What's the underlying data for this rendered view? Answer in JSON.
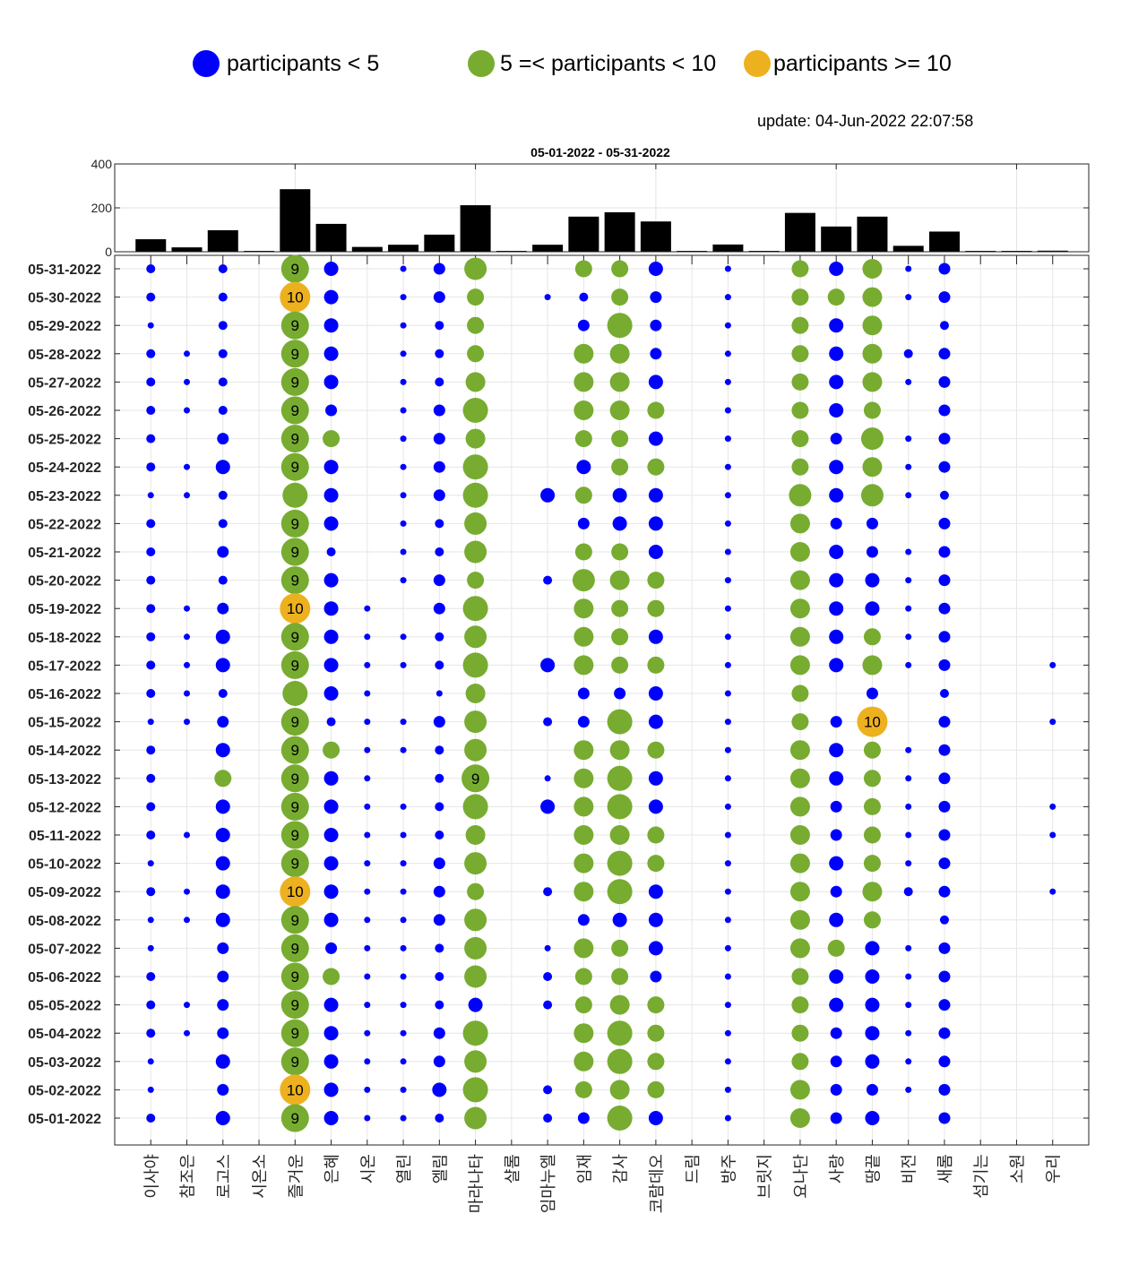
{
  "legend": {
    "items": [
      {
        "label": "participants < 5",
        "color": "#0000ff"
      },
      {
        "label": "5 =< participants < 10",
        "color": "#77ac30"
      },
      {
        "label": "participants >= 10",
        "color": "#edb120"
      }
    ]
  },
  "update_text": "update: 04-Jun-2022 22:07:58",
  "chart_data": {
    "type": "scatter",
    "title": "05-01-2022  - 05-31-2022",
    "bar_chart": {
      "type": "bar",
      "ylim": [
        0,
        400
      ],
      "yticks": [
        "0",
        "200",
        "400"
      ],
      "grid": true,
      "values": [
        57,
        20,
        98,
        0,
        285,
        127,
        22,
        32,
        78,
        212,
        0,
        32,
        160,
        180,
        138,
        0,
        33,
        0,
        177,
        115,
        160,
        27,
        92,
        0,
        0,
        5
      ]
    },
    "colors": {
      "low": "#0000ff",
      "mid": "#77ac30",
      "high": "#edb120"
    },
    "thresholds": {
      "mid": 5,
      "high": 10
    },
    "label_min": 9,
    "dates": [
      "05-31-2022",
      "05-30-2022",
      "05-29-2022",
      "05-28-2022",
      "05-27-2022",
      "05-26-2022",
      "05-25-2022",
      "05-24-2022",
      "05-23-2022",
      "05-22-2022",
      "05-21-2022",
      "05-20-2022",
      "05-19-2022",
      "05-18-2022",
      "05-17-2022",
      "05-16-2022",
      "05-15-2022",
      "05-14-2022",
      "05-13-2022",
      "05-12-2022",
      "05-11-2022",
      "05-10-2022",
      "05-09-2022",
      "05-08-2022",
      "05-07-2022",
      "05-06-2022",
      "05-05-2022",
      "05-04-2022",
      "05-03-2022",
      "05-02-2022",
      "05-01-2022"
    ],
    "groups": [
      {
        "name": "이사야",
        "values": [
          2,
          2,
          1,
          2,
          2,
          2,
          2,
          2,
          1,
          2,
          2,
          2,
          2,
          2,
          2,
          2,
          1,
          2,
          2,
          2,
          2,
          1,
          2,
          1,
          1,
          2,
          2,
          2,
          1,
          1,
          2
        ]
      },
      {
        "name": "참조은",
        "values": [
          0,
          0,
          0,
          1,
          1,
          1,
          0,
          1,
          1,
          0,
          0,
          0,
          1,
          1,
          1,
          1,
          1,
          0,
          0,
          0,
          1,
          0,
          1,
          1,
          0,
          0,
          1,
          1,
          0,
          0,
          0
        ]
      },
      {
        "name": "로고스",
        "values": [
          2,
          2,
          2,
          2,
          2,
          2,
          3,
          4,
          2,
          2,
          3,
          2,
          3,
          4,
          4,
          2,
          3,
          4,
          5,
          4,
          4,
          4,
          4,
          4,
          3,
          3,
          3,
          3,
          4,
          3,
          4
        ]
      },
      {
        "name": "시온소",
        "values": [
          0,
          0,
          0,
          0,
          0,
          0,
          0,
          0,
          0,
          0,
          0,
          0,
          0,
          0,
          0,
          0,
          0,
          0,
          0,
          0,
          0,
          0,
          0,
          0,
          0,
          0,
          0,
          0,
          0,
          0,
          0
        ]
      },
      {
        "name": "즐거운",
        "values": [
          9,
          10,
          9,
          9,
          9,
          9,
          9,
          9,
          8,
          9,
          9,
          9,
          10,
          9,
          9,
          8,
          9,
          9,
          9,
          9,
          9,
          9,
          10,
          9,
          9,
          9,
          9,
          9,
          9,
          10,
          9
        ]
      },
      {
        "name": "은혜",
        "values": [
          4,
          4,
          4,
          4,
          4,
          3,
          5,
          4,
          4,
          4,
          2,
          4,
          4,
          4,
          4,
          4,
          2,
          5,
          4,
          4,
          4,
          4,
          4,
          4,
          3,
          5,
          4,
          4,
          4,
          4,
          4
        ]
      },
      {
        "name": "시온",
        "values": [
          0,
          0,
          0,
          0,
          0,
          0,
          0,
          0,
          0,
          0,
          0,
          0,
          1,
          1,
          1,
          1,
          1,
          1,
          1,
          1,
          1,
          1,
          1,
          1,
          1,
          1,
          1,
          1,
          1,
          1,
          1
        ]
      },
      {
        "name": "열린",
        "values": [
          1,
          1,
          1,
          1,
          1,
          1,
          1,
          1,
          1,
          1,
          1,
          1,
          0,
          1,
          1,
          0,
          1,
          1,
          0,
          1,
          1,
          1,
          1,
          1,
          1,
          1,
          1,
          1,
          1,
          1,
          1
        ]
      },
      {
        "name": "엘림",
        "values": [
          3,
          3,
          2,
          2,
          2,
          3,
          3,
          3,
          3,
          2,
          2,
          3,
          3,
          2,
          2,
          1,
          3,
          2,
          2,
          2,
          2,
          3,
          3,
          3,
          2,
          2,
          2,
          3,
          3,
          4,
          2
        ]
      },
      {
        "name": "마라나타",
        "values": [
          7,
          5,
          5,
          5,
          6,
          8,
          6,
          8,
          8,
          7,
          7,
          5,
          8,
          7,
          8,
          6,
          7,
          7,
          9,
          8,
          6,
          7,
          5,
          7,
          7,
          7,
          4,
          8,
          7,
          8,
          7
        ]
      },
      {
        "name": "샬롬",
        "values": [
          0,
          0,
          0,
          0,
          0,
          0,
          0,
          0,
          0,
          0,
          0,
          0,
          0,
          0,
          0,
          0,
          0,
          0,
          0,
          0,
          0,
          0,
          0,
          0,
          0,
          0,
          0,
          0,
          0,
          0,
          0
        ]
      },
      {
        "name": "임마누엘",
        "values": [
          0,
          1,
          0,
          0,
          0,
          0,
          0,
          0,
          4,
          0,
          0,
          2,
          0,
          0,
          4,
          0,
          2,
          0,
          1,
          4,
          0,
          0,
          2,
          0,
          1,
          2,
          2,
          0,
          0,
          2,
          2
        ]
      },
      {
        "name": "임재",
        "values": [
          5,
          2,
          3,
          6,
          6,
          6,
          5,
          4,
          5,
          3,
          5,
          7,
          6,
          6,
          6,
          3,
          3,
          6,
          6,
          6,
          6,
          6,
          6,
          3,
          6,
          5,
          5,
          6,
          6,
          5,
          3
        ]
      },
      {
        "name": "감사",
        "values": [
          5,
          5,
          8,
          6,
          6,
          6,
          5,
          5,
          4,
          4,
          5,
          6,
          5,
          5,
          5,
          3,
          8,
          6,
          8,
          8,
          6,
          8,
          8,
          4,
          5,
          5,
          6,
          8,
          8,
          6,
          8
        ]
      },
      {
        "name": "코람데오",
        "values": [
          4,
          3,
          3,
          3,
          4,
          5,
          4,
          5,
          4,
          4,
          4,
          5,
          5,
          4,
          5,
          4,
          4,
          5,
          4,
          4,
          5,
          5,
          4,
          4,
          4,
          3,
          5,
          5,
          5,
          5,
          4
        ]
      },
      {
        "name": "드림",
        "values": [
          0,
          0,
          0,
          0,
          0,
          0,
          0,
          0,
          0,
          0,
          0,
          0,
          0,
          0,
          0,
          0,
          0,
          0,
          0,
          0,
          0,
          0,
          0,
          0,
          0,
          0,
          0,
          0,
          0,
          0,
          0
        ]
      },
      {
        "name": "방주",
        "values": [
          1,
          1,
          1,
          1,
          1,
          1,
          1,
          1,
          1,
          1,
          1,
          1,
          1,
          1,
          1,
          1,
          1,
          1,
          1,
          1,
          1,
          1,
          1,
          1,
          1,
          1,
          1,
          1,
          1,
          1,
          1
        ]
      },
      {
        "name": "브릿지",
        "values": [
          0,
          0,
          0,
          0,
          0,
          0,
          0,
          0,
          0,
          0,
          0,
          0,
          0,
          0,
          0,
          0,
          0,
          0,
          0,
          0,
          0,
          0,
          0,
          0,
          0,
          0,
          0,
          0,
          0,
          0,
          0
        ]
      },
      {
        "name": "요나단",
        "values": [
          5,
          5,
          5,
          5,
          5,
          5,
          5,
          5,
          7,
          6,
          6,
          6,
          6,
          6,
          6,
          5,
          5,
          6,
          6,
          6,
          6,
          6,
          6,
          6,
          6,
          5,
          5,
          5,
          5,
          6,
          6
        ]
      },
      {
        "name": "사랑",
        "values": [
          4,
          5,
          4,
          4,
          4,
          4,
          3,
          4,
          4,
          3,
          4,
          4,
          4,
          4,
          4,
          0,
          3,
          4,
          4,
          3,
          3,
          4,
          3,
          4,
          5,
          4,
          4,
          3,
          3,
          3,
          3
        ]
      },
      {
        "name": "땅끝",
        "values": [
          6,
          6,
          6,
          6,
          6,
          5,
          7,
          6,
          7,
          3,
          3,
          4,
          4,
          5,
          6,
          3,
          10,
          5,
          5,
          5,
          5,
          5,
          6,
          5,
          4,
          4,
          4,
          4,
          4,
          3,
          4
        ]
      },
      {
        "name": "비전",
        "values": [
          1,
          1,
          0,
          2,
          1,
          0,
          1,
          1,
          1,
          0,
          1,
          1,
          1,
          1,
          1,
          0,
          0,
          1,
          1,
          1,
          1,
          1,
          2,
          0,
          1,
          1,
          1,
          1,
          1,
          1,
          0
        ]
      },
      {
        "name": "새롬",
        "values": [
          3,
          3,
          2,
          3,
          3,
          3,
          3,
          3,
          2,
          3,
          3,
          3,
          3,
          3,
          3,
          2,
          3,
          3,
          3,
          3,
          3,
          3,
          3,
          2,
          3,
          3,
          3,
          3,
          3,
          3,
          3
        ]
      },
      {
        "name": "섬기는",
        "values": [
          0,
          0,
          0,
          0,
          0,
          0,
          0,
          0,
          0,
          0,
          0,
          0,
          0,
          0,
          0,
          0,
          0,
          0,
          0,
          0,
          0,
          0,
          0,
          0,
          0,
          0,
          0,
          0,
          0,
          0,
          0
        ]
      },
      {
        "name": "소원",
        "values": [
          0,
          0,
          0,
          0,
          0,
          0,
          0,
          0,
          0,
          0,
          0,
          0,
          0,
          0,
          0,
          0,
          0,
          0,
          0,
          0,
          0,
          0,
          0,
          0,
          0,
          0,
          0,
          0,
          0,
          0,
          0
        ]
      },
      {
        "name": "우리",
        "values": [
          0,
          0,
          0,
          0,
          0,
          0,
          0,
          0,
          0,
          0,
          0,
          0,
          0,
          0,
          1,
          0,
          1,
          0,
          0,
          1,
          1,
          0,
          1,
          0,
          0,
          0,
          0,
          0,
          0,
          0,
          0
        ]
      }
    ]
  }
}
